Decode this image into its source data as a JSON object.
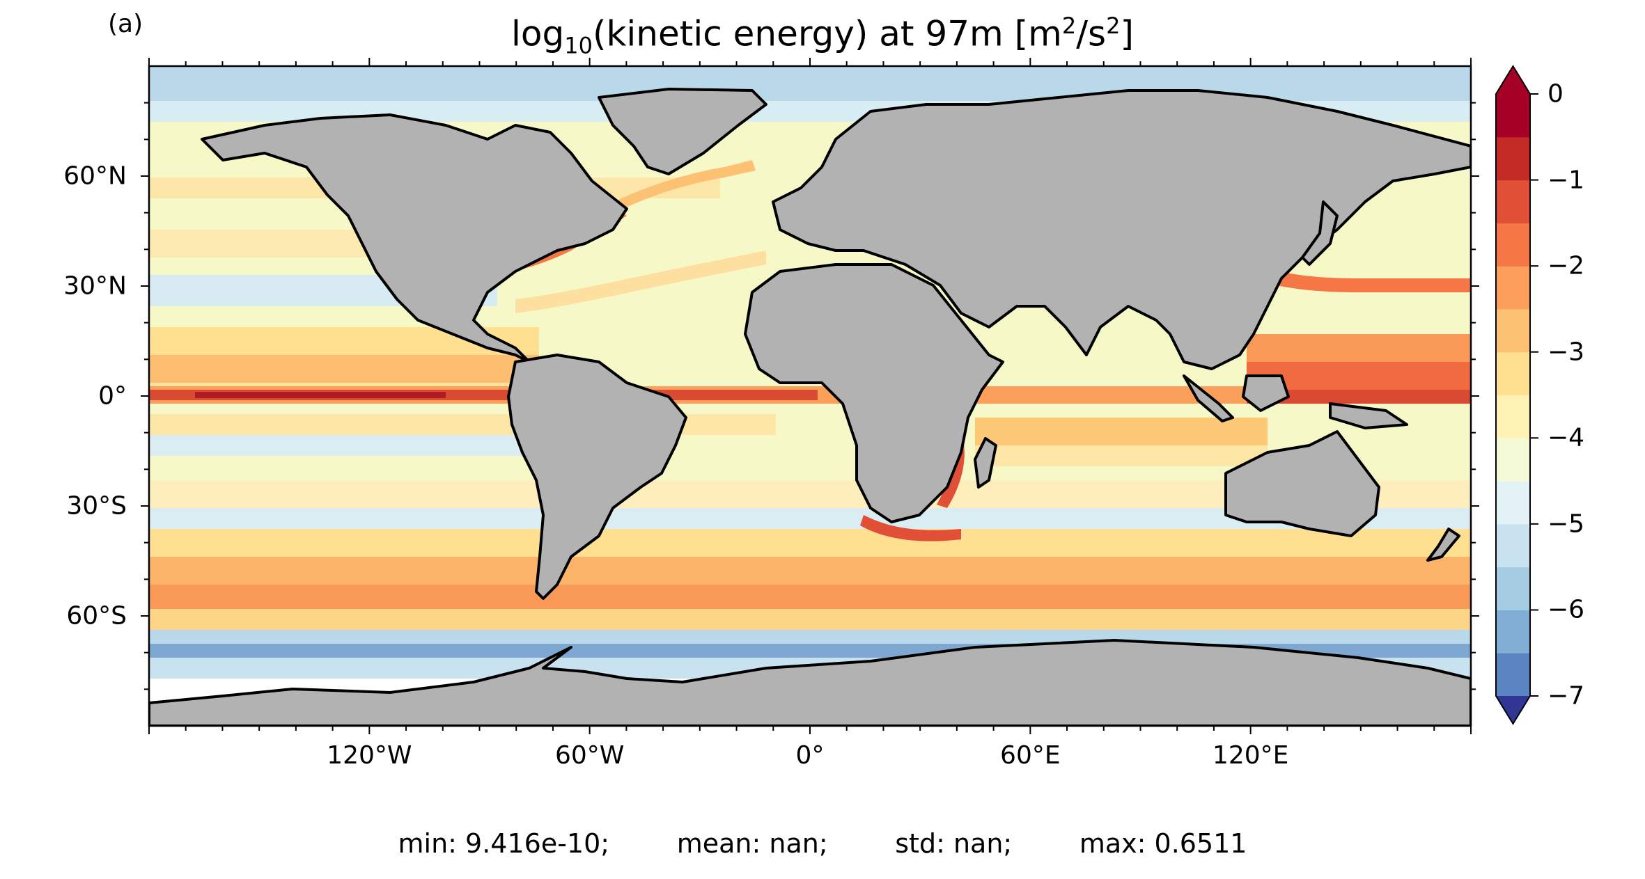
{
  "figure": {
    "panel_label": "(a)",
    "title_prefix": "log",
    "title_sub": "10",
    "title_mid": "(kinetic energy) at 97m [m",
    "title_sup1": "2",
    "title_mid2": "/s",
    "title_sup2": "2",
    "title_suffix": "]",
    "stats": "min: 9.416e-10;        mean: nan;        std: nan;        max: 0.6511"
  },
  "map": {
    "projection": "PlateCarree",
    "extent_lon": [
      -180,
      180
    ],
    "extent_lat": [
      -90,
      90
    ],
    "land_color": "#b2b2b2",
    "coastline_color": "#000000",
    "missing_color": "#ffffff",
    "lat_ticks": [
      {
        "value": 60,
        "label": "60°N"
      },
      {
        "value": 30,
        "label": "30°N"
      },
      {
        "value": 0,
        "label": "0°"
      },
      {
        "value": -30,
        "label": "30°S"
      },
      {
        "value": -60,
        "label": "60°S"
      }
    ],
    "lon_ticks": [
      {
        "value": -120,
        "label": "120°W"
      },
      {
        "value": -60,
        "label": "60°W"
      },
      {
        "value": 0,
        "label": "0°"
      },
      {
        "value": 60,
        "label": "60°E"
      },
      {
        "value": 120,
        "label": "120°E"
      }
    ]
  },
  "colorbar": {
    "colormap": "RdYlBu_r",
    "range": [
      -7,
      0
    ],
    "levels": [
      -7,
      -6.5,
      -6,
      -5.5,
      -5,
      -4.5,
      -4,
      -3.5,
      -3,
      -2.5,
      -2,
      -1.5,
      -1,
      -0.5,
      0
    ],
    "colors": [
      "#3a4fa3",
      "#5a84c2",
      "#80aed4",
      "#a6cce3",
      "#c8e3ef",
      "#e3f2f5",
      "#f3fad5",
      "#fef3b4",
      "#fee090",
      "#fdc173",
      "#fb9f5a",
      "#f57746",
      "#e04f36",
      "#c52b26",
      "#a50026"
    ],
    "extend": "both",
    "over_color": "#a50026",
    "under_color": "#313695",
    "tick_labels": [
      {
        "value": 0,
        "label": "0"
      },
      {
        "value": -1,
        "label": "−1"
      },
      {
        "value": -2,
        "label": "−2"
      },
      {
        "value": -3,
        "label": "−3"
      },
      {
        "value": -4,
        "label": "−4"
      },
      {
        "value": -5,
        "label": "−5"
      },
      {
        "value": -6,
        "label": "−6"
      },
      {
        "value": -7,
        "label": "−7"
      }
    ]
  }
}
